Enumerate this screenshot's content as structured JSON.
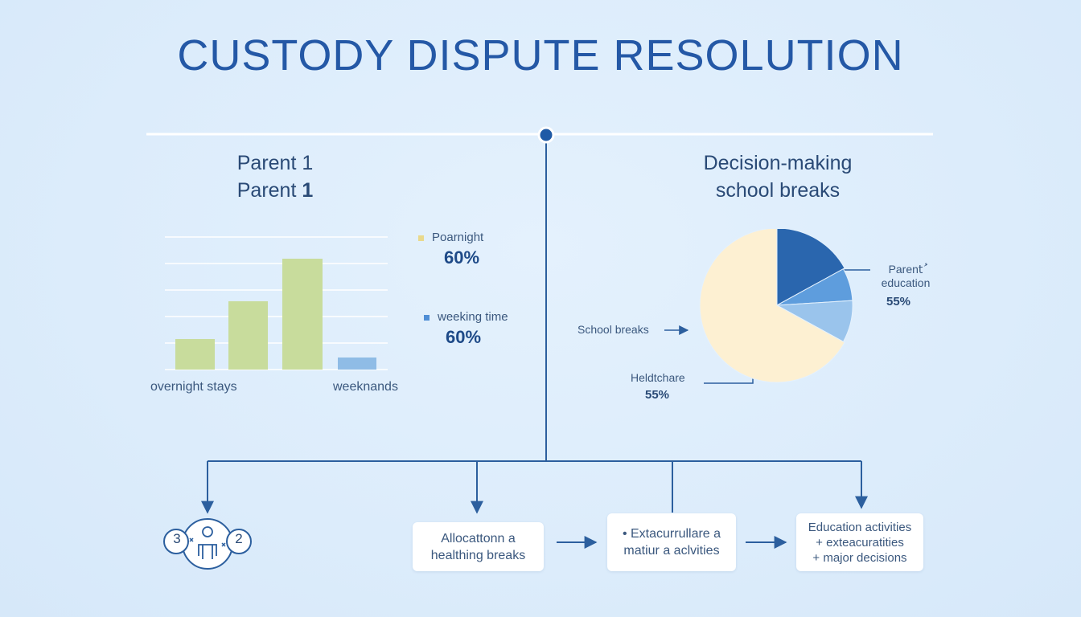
{
  "title": "CUSTODY DISPUTE RESOLUTION",
  "left_panel": {
    "heading_line1": "Parent 1",
    "heading_line2_text": "Parent ",
    "heading_line2_bold": "1",
    "legend": [
      {
        "label": "Poarnight",
        "value": "60%",
        "color": "#e9d98c"
      },
      {
        "label": "weeking time",
        "value": "60%",
        "color": "#4f8ed6"
      }
    ],
    "x_labels": [
      "overnight stays",
      "weeknands"
    ]
  },
  "right_panel": {
    "heading_line1": "Decision-making",
    "heading_line2": "school breaks",
    "labels": {
      "parent_line1": "Parentُ",
      "parent_line2": "education",
      "parent_value": "55%",
      "school": "School breaks",
      "health_label": "Heldtchare",
      "health_value": "55%"
    }
  },
  "chart_data": [
    {
      "type": "bar",
      "categories": [
        "",
        "",
        "",
        ""
      ],
      "series": [
        {
          "values": [
            38,
            85,
            138,
            15
          ]
        }
      ],
      "bar_colors": [
        "#c8dc9c",
        "#c8dc9c",
        "#c8dc9c",
        "#8fbce6"
      ],
      "ylim": [
        0,
        165
      ],
      "grid": true
    },
    {
      "type": "pie",
      "slices": [
        {
          "value": 17,
          "color": "#2a66ae"
        },
        {
          "value": 7,
          "color": "#5e9ddd"
        },
        {
          "value": 9,
          "color": "#9ac4ec"
        },
        {
          "value": 67,
          "color": "#fdf0d2"
        }
      ]
    }
  ],
  "flow": {
    "badge_left": "3",
    "badge_right": "2",
    "boxes": [
      {
        "line1": "Allocattonn a",
        "line2": "healthing breaks"
      },
      {
        "line1": "• Extacurrullare a",
        "line2": "matiur a aclvities"
      },
      {
        "line1": "Education activities",
        "line2": "+ exteacuratities",
        "line3": "+ major decisions"
      }
    ]
  },
  "colors": {
    "accent": "#2458a6",
    "line": "#2c5f9e"
  }
}
